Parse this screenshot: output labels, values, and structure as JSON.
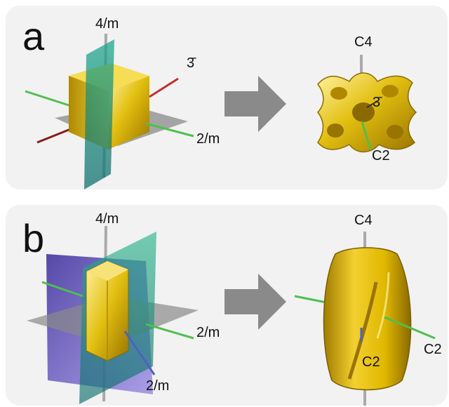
{
  "panel_a": {
    "letter": "a",
    "left_labels": {
      "top_axis": "4/m",
      "diag_axis": "3̄",
      "side_axis": "2/m"
    },
    "right_labels": {
      "top_axis": "C4",
      "center_axis": "3̄",
      "bottom_axis": "C2"
    }
  },
  "panel_b": {
    "letter": "b",
    "left_labels": {
      "top_axis": "4/m",
      "side_axis": "2/m",
      "lower_axis": "2/m"
    },
    "right_labels": {
      "top_axis": "C4",
      "center_axis": "C2",
      "side_axis": "C2"
    }
  },
  "colors": {
    "panel_bg": "#f2f2f2",
    "gold": "#d9b400",
    "arrow_gray": "#8a8a8a",
    "mirror_teal": "#2aa58a",
    "mirror_purple": "#5a3fc0",
    "mirror_gray": "#9a9a9a",
    "axis_green": "#4fbf4f",
    "axis_red": "#c03030",
    "axis_blue": "#5060c0"
  },
  "icons": [
    "right-arrow-icon"
  ]
}
